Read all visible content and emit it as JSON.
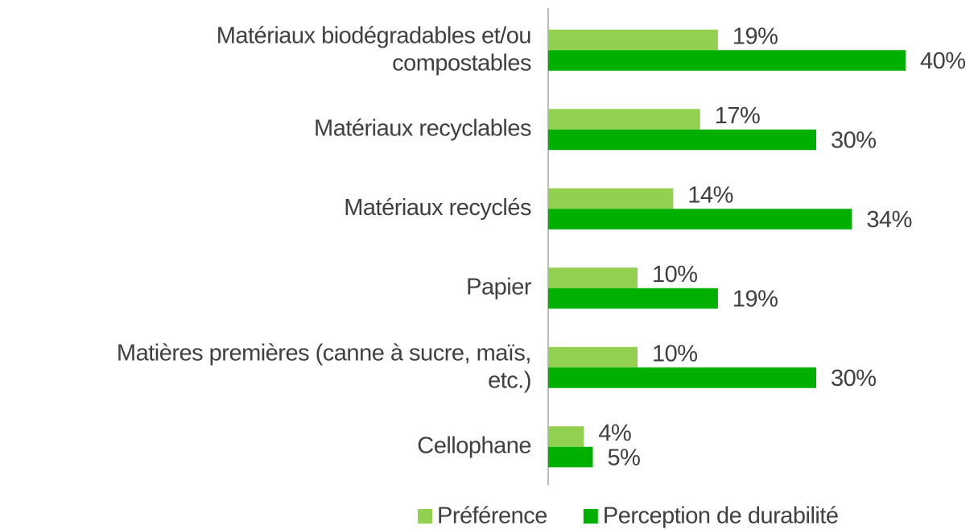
{
  "chart_data": {
    "type": "hbar",
    "categories": [
      "Matériaux biodégradables et/ou\ncompostables",
      "Matériaux recyclables",
      "Matériaux recyclés",
      "Papier",
      "Matières premières (canne à sucre, maïs,\netc.)",
      "Cellophane"
    ],
    "series": [
      {
        "name": "Préférence",
        "color": "#92d050",
        "values": [
          19,
          17,
          14,
          10,
          10,
          4
        ],
        "value_labels": [
          "19%",
          "17%",
          "14%",
          "10%",
          "10%",
          "4%"
        ]
      },
      {
        "name": "Perception de durabilité",
        "color": "#00b000",
        "values": [
          40,
          30,
          34,
          19,
          30,
          5
        ],
        "value_labels": [
          "40%",
          "30%",
          "34%",
          "19%",
          "30%",
          "5%"
        ]
      }
    ],
    "xlim": [
      0,
      40
    ],
    "legend": "bottom"
  }
}
